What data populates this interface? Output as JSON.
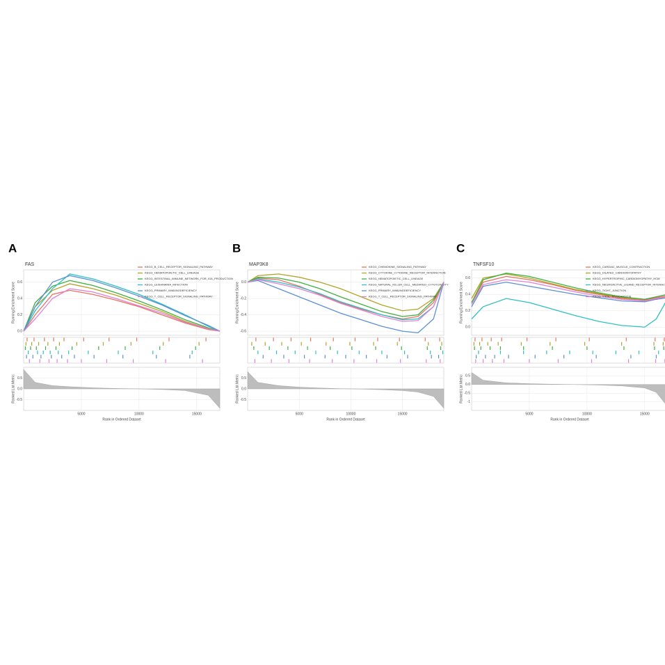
{
  "chart_data": [
    {
      "type": "line",
      "panel": "A",
      "title": "FAS",
      "ylabel": "Running Enrichment Score",
      "metric_label": "Ranked List Metric",
      "xlabel": "Rank in Ordered Dataset",
      "xlim": [
        0,
        17000
      ],
      "xticks": [
        5000,
        10000,
        15000
      ],
      "ylim": [
        -0.05,
        0.75
      ],
      "yticks": [
        {
          "value": 0,
          "label": "0.0"
        },
        0.2,
        0.4,
        0.6
      ],
      "metric_ylim": [
        -1,
        1
      ],
      "metric_yticks": [
        -0.5,
        {
          "value": 0,
          "label": "0.0"
        },
        0.5
      ],
      "x": [
        0,
        1000,
        2500,
        4000,
        6000,
        8000,
        10000,
        12000,
        14000,
        16000,
        17000
      ],
      "metric": [
        0.9,
        0.3,
        0.15,
        0.1,
        0.05,
        0.02,
        0,
        -0.03,
        -0.08,
        -0.3,
        -0.9
      ],
      "series": [
        {
          "name": "KEGG_B_CELL_RECEPTOR_SIGNALING_PATHWAY",
          "color": "#e8715f",
          "values": [
            0,
            0.2,
            0.45,
            0.5,
            0.45,
            0.38,
            0.3,
            0.2,
            0.1,
            0.02,
            0
          ],
          "hits": [
            300,
            900,
            1800,
            2600,
            3500,
            5200,
            7400,
            9800,
            12600,
            15800
          ]
        },
        {
          "name": "KEGG_HEMATOPOIETIC_CELL_LINEAGE",
          "color": "#b3a325",
          "values": [
            0,
            0.3,
            0.5,
            0.58,
            0.52,
            0.44,
            0.34,
            0.24,
            0.12,
            0.03,
            0
          ],
          "hits": [
            200,
            700,
            1300,
            2100,
            3100,
            4600,
            6900,
            9300,
            12100,
            15200
          ]
        },
        {
          "name": "KEGG_INTESTINAL_IMMUNE_NETWORK_FOR_IGA_PRODUCTION",
          "color": "#3fae3f",
          "values": [
            0,
            0.35,
            0.55,
            0.62,
            0.56,
            0.47,
            0.37,
            0.26,
            0.14,
            0.04,
            0
          ],
          "hits": [
            150,
            600,
            1100,
            1900,
            2800,
            4200,
            6500,
            8800,
            11800,
            14900
          ]
        },
        {
          "name": "KEGG_LEISHMANIA_INFECTION",
          "color": "#2ebfc4",
          "values": [
            0,
            0.25,
            0.52,
            0.7,
            0.64,
            0.55,
            0.45,
            0.33,
            0.2,
            0.06,
            0
          ],
          "hits": [
            400,
            1200,
            1700,
            2300,
            3000,
            3900,
            5600,
            8200,
            11200,
            14600
          ]
        },
        {
          "name": "KEGG_PRIMARY_IMMUNODEFICIENCY",
          "color": "#5b8fd6",
          "values": [
            0,
            0.3,
            0.6,
            0.68,
            0.62,
            0.53,
            0.43,
            0.32,
            0.19,
            0.07,
            0
          ],
          "hits": [
            250,
            800,
            1500,
            2400,
            3300,
            4400,
            6100,
            8600,
            11500,
            14400
          ]
        },
        {
          "name": "KEGG_T_CELL_RECEPTOR_SIGNALING_PATHWAY",
          "color": "#e27fd6",
          "values": [
            0,
            0.15,
            0.4,
            0.52,
            0.48,
            0.4,
            0.31,
            0.22,
            0.11,
            0.03,
            0
          ],
          "hits": [
            500,
            1400,
            2200,
            2900,
            3800,
            5000,
            7200,
            9500,
            12300,
            15500
          ]
        }
      ]
    },
    {
      "type": "line",
      "panel": "B",
      "title": "MAP3K8",
      "ylabel": "Running Enrichment Score",
      "metric_label": "Ranked List Metric",
      "xlabel": "Rank in Ordered Dataset",
      "xlim": [
        0,
        19000
      ],
      "xticks": [
        5000,
        10000,
        15000
      ],
      "ylim": [
        -0.65,
        0.15
      ],
      "yticks": [
        -0.6,
        -0.4,
        -0.2,
        {
          "value": 0,
          "label": "0.0"
        }
      ],
      "metric_ylim": [
        -1,
        1
      ],
      "metric_yticks": [
        -0.5,
        {
          "value": 0,
          "label": "0.0"
        },
        0.5
      ],
      "x": [
        0,
        1000,
        3000,
        5000,
        7000,
        9000,
        11000,
        13000,
        15000,
        16500,
        18000,
        19000
      ],
      "metric": [
        0.8,
        0.3,
        0.15,
        0.08,
        0.04,
        0.01,
        -0.01,
        -0.04,
        -0.08,
        -0.15,
        -0.35,
        -0.9
      ],
      "series": [
        {
          "name": "KEGG_CHEMOKINE_SIGNALING_PATHWAY",
          "color": "#e8715f",
          "values": [
            0,
            0.05,
            0.03,
            -0.05,
            -0.15,
            -0.25,
            -0.33,
            -0.4,
            -0.45,
            -0.42,
            -0.25,
            0
          ],
          "hits": [
            800,
            2500,
            4200,
            6100,
            8300,
            10400,
            12600,
            14700,
            17200,
            18600
          ]
        },
        {
          "name": "KEGG_CYTOKINE_CYTOKINE_RECEPTOR_INTERACTION",
          "color": "#b3a325",
          "values": [
            0,
            0.08,
            0.1,
            0.06,
            0,
            -0.08,
            -0.18,
            -0.28,
            -0.35,
            -0.33,
            -0.2,
            0
          ],
          "hits": [
            400,
            1700,
            3300,
            5200,
            7600,
            9900,
            12200,
            14500,
            17500,
            18800
          ]
        },
        {
          "name": "KEGG_HEMATOPOIETIC_CELL_LINEAGE",
          "color": "#3fae3f",
          "values": [
            0,
            0.06,
            0.05,
            0,
            -0.08,
            -0.18,
            -0.27,
            -0.36,
            -0.42,
            -0.4,
            -0.22,
            0
          ],
          "hits": [
            600,
            2100,
            3900,
            5800,
            8000,
            10100,
            12400,
            14900,
            17400,
            18700
          ]
        },
        {
          "name": "KEGG_NATURAL_KILLER_CELL_MEDIATED_CYTOTOXICITY",
          "color": "#2ebfc4",
          "values": [
            0,
            0.04,
            0,
            -0.06,
            -0.14,
            -0.24,
            -0.32,
            -0.4,
            -0.46,
            -0.45,
            -0.3,
            0
          ],
          "hits": [
            1000,
            2800,
            4600,
            6600,
            8700,
            10800,
            13000,
            15200,
            17700,
            18900
          ]
        },
        {
          "name": "KEGG_PRIMARY_IMMUNODEFICIENCY",
          "color": "#5b8fd6",
          "values": [
            0,
            0.02,
            -0.08,
            -0.18,
            -0.28,
            -0.38,
            -0.46,
            -0.54,
            -0.6,
            -0.62,
            -0.45,
            0
          ],
          "hits": [
            1500,
            3500,
            5500,
            7500,
            9500,
            11500,
            13500,
            15500,
            17800,
            18500
          ]
        },
        {
          "name": "KEGG_T_CELL_RECEPTOR_SIGNALING_PATHWAY",
          "color": "#e27fd6",
          "values": [
            0,
            0.03,
            -0.02,
            -0.08,
            -0.16,
            -0.26,
            -0.34,
            -0.42,
            -0.48,
            -0.47,
            -0.3,
            0
          ],
          "hits": [
            700,
            2300,
            4000,
            6000,
            8200,
            10300,
            12500,
            14800,
            17300,
            18650
          ]
        }
      ]
    },
    {
      "type": "line",
      "panel": "C",
      "title": "TNFSF10",
      "ylabel": "Running Enrichment Score",
      "metric_label": "Ranked List Metric",
      "xlabel": "Rank in Ordered Dataset",
      "xlim": [
        0,
        17000
      ],
      "xticks": [
        5000,
        10000,
        15000
      ],
      "ylim": [
        -0.1,
        0.7
      ],
      "yticks": [
        {
          "value": 0,
          "label": "0.0"
        },
        0.2,
        0.4,
        0.6
      ],
      "metric_ylim": [
        -1.5,
        1
      ],
      "metric_yticks": [
        -1,
        -0.5,
        {
          "value": 0,
          "label": "0.0"
        },
        0.5
      ],
      "x": [
        0,
        1000,
        3000,
        5000,
        7000,
        9000,
        11000,
        13000,
        15000,
        16000,
        17000
      ],
      "metric": [
        0.7,
        0.25,
        0.1,
        0.05,
        0.02,
        0,
        -0.03,
        -0.08,
        -0.2,
        -0.45,
        -1.3
      ],
      "series": [
        {
          "name": "KEGG_CARDIAC_MUSCLE_CONTRACTION",
          "color": "#e8715f",
          "values": [
            0.3,
            0.55,
            0.62,
            0.58,
            0.52,
            0.45,
            0.4,
            0.35,
            0.33,
            0.36,
            0.38
          ],
          "hits": [
            300,
            900,
            1700,
            2600,
            4800,
            7300,
            10200,
            13400,
            15900,
            16700
          ]
        },
        {
          "name": "KEGG_DILATED_CARDIOMYOPATHY",
          "color": "#b3a325",
          "values": [
            0.35,
            0.6,
            0.65,
            0.6,
            0.53,
            0.46,
            0.41,
            0.36,
            0.34,
            0.37,
            0.4
          ],
          "hits": [
            200,
            700,
            1400,
            2300,
            4300,
            6800,
            9800,
            13000,
            15800,
            16600
          ]
        },
        {
          "name": "KEGG_HYPERTROPHIC_CARDIOMYOPATHY_HCM",
          "color": "#3fae3f",
          "values": [
            0.3,
            0.58,
            0.66,
            0.62,
            0.55,
            0.48,
            0.42,
            0.37,
            0.34,
            0.37,
            0.4
          ],
          "hits": [
            250,
            800,
            1600,
            2500,
            4500,
            7000,
            10000,
            13200,
            15850,
            16650
          ]
        },
        {
          "name": "KEGG_NEUROACTIVE_LIGAND_RECEPTOR_INTERACTION",
          "color": "#2ebfc4",
          "values": [
            0.1,
            0.25,
            0.35,
            0.3,
            0.22,
            0.14,
            0.07,
            0.02,
            0,
            0.1,
            0.35
          ],
          "hits": [
            600,
            2500,
            4500,
            6500,
            8500,
            10500,
            12500,
            14500,
            16200,
            16900
          ]
        },
        {
          "name": "KEGG_TIGHT_JUNCTION",
          "color": "#5b8fd6",
          "values": [
            0.25,
            0.5,
            0.55,
            0.5,
            0.45,
            0.4,
            0.36,
            0.32,
            0.31,
            0.34,
            0.36
          ],
          "hits": [
            400,
            1200,
            2000,
            3200,
            5500,
            8000,
            10800,
            13800,
            16000,
            16800
          ]
        },
        {
          "name": "KEGG_VIRAL_MYOCARDITIS",
          "color": "#e27fd6",
          "values": [
            0.28,
            0.52,
            0.58,
            0.55,
            0.49,
            0.43,
            0.38,
            0.34,
            0.32,
            0.35,
            0.37
          ],
          "hits": [
            350,
            1000,
            1800,
            2800,
            5000,
            7500,
            10400,
            13600,
            15950,
            16750
          ]
        }
      ]
    }
  ]
}
